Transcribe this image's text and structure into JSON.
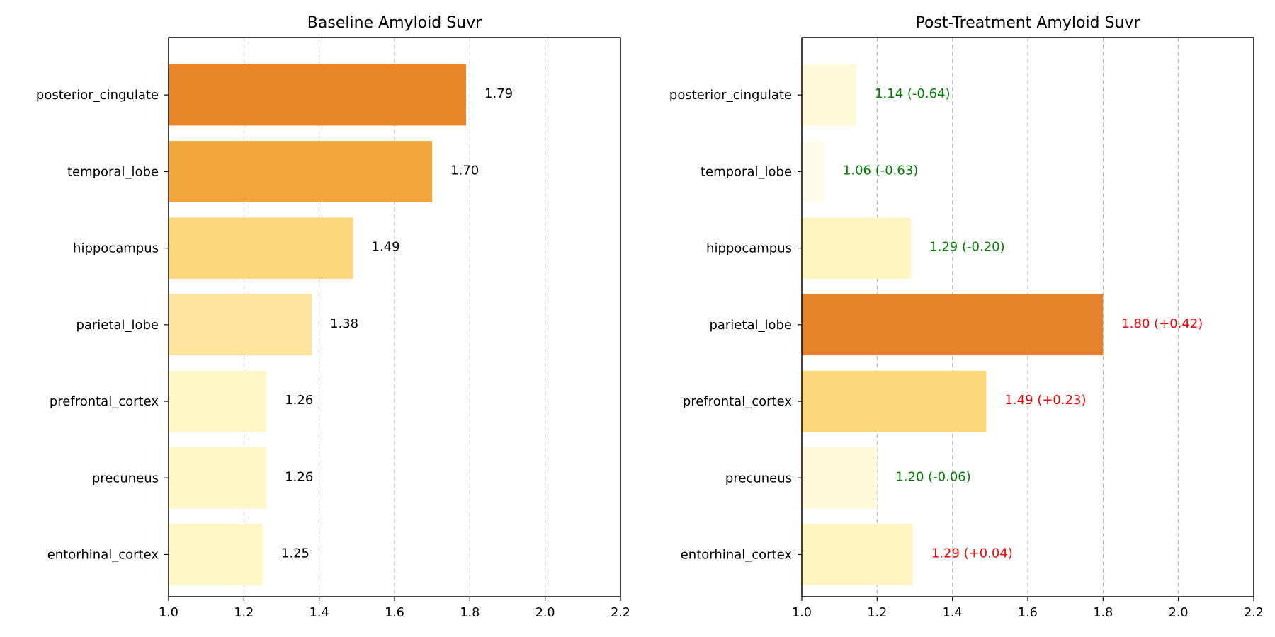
{
  "chart_data": [
    {
      "type": "bar",
      "orientation": "horizontal",
      "title": "Baseline Amyloid Suvr",
      "xlabel": "",
      "ylabel": "",
      "xlim": [
        1.0,
        2.2
      ],
      "xticks": [
        "1.0",
        "1.2",
        "1.4",
        "1.6",
        "1.8",
        "2.0",
        "2.2"
      ],
      "grid": "x, dashed",
      "categories": [
        "posterior_cingulate",
        "temporal_lobe",
        "hippocampus",
        "parietal_lobe",
        "prefrontal_cortex",
        "precuneus",
        "entorhinal_cortex"
      ],
      "values": [
        1.79,
        1.7,
        1.49,
        1.38,
        1.26,
        1.26,
        1.25
      ],
      "value_labels": [
        "1.79",
        "1.70",
        "1.49",
        "1.38",
        "1.26",
        "1.26",
        "1.25"
      ],
      "label_colors": [
        "#000000",
        "#000000",
        "#000000",
        "#000000",
        "#000000",
        "#000000",
        "#000000"
      ],
      "bar_colors": [
        "#e8872a",
        "#f2a73d",
        "#fdd67a",
        "#fde59e",
        "#fff5c5",
        "#fff5c5",
        "#fff5c5"
      ]
    },
    {
      "type": "bar",
      "orientation": "horizontal",
      "title": "Post-Treatment Amyloid Suvr",
      "xlabel": "",
      "ylabel": "",
      "xlim": [
        1.0,
        2.2
      ],
      "xticks": [
        "1.0",
        "1.2",
        "1.4",
        "1.6",
        "1.8",
        "2.0",
        "2.2"
      ],
      "grid": "x, dashed",
      "categories": [
        "posterior_cingulate",
        "temporal_lobe",
        "hippocampus",
        "parietal_lobe",
        "prefrontal_cortex",
        "precuneus",
        "entorhinal_cortex"
      ],
      "values": [
        1.145,
        1.06,
        1.29,
        1.8,
        1.49,
        1.2,
        1.295
      ],
      "value_labels": [
        "1.14 (-0.64)",
        "1.06 (-0.63)",
        "1.29 (-0.20)",
        "1.80 (+0.42)",
        "1.49 (+0.23)",
        "1.20 (-0.06)",
        "1.29 (+0.04)"
      ],
      "label_colors": [
        "#008000",
        "#008000",
        "#008000",
        "#ff0000",
        "#ff0000",
        "#008000",
        "#ff0000"
      ],
      "bar_colors": [
        "#fff9da",
        "#fffcec",
        "#fff5c0",
        "#e6822a",
        "#fdd87a",
        "#fff9da",
        "#fff5c0"
      ]
    }
  ]
}
